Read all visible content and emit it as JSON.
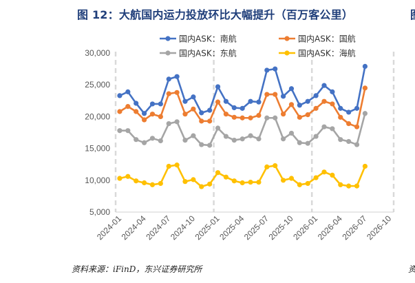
{
  "title": "图 12：大航国内运力投放环比大幅提升（百万客公里）",
  "edge_char_top": "图",
  "source": "资料来源：iFinD，东兴证券研究所",
  "edge_char_bottom": "资",
  "chart_data": {
    "type": "line",
    "ylim": [
      5000,
      30000
    ],
    "yticks": [
      "5,000",
      "10,000",
      "15,000",
      "20,000",
      "25,000",
      "30,000"
    ],
    "ytick_values": [
      5000,
      10000,
      15000,
      20000,
      25000,
      30000
    ],
    "xticks": [
      "2024-01",
      "2024-04",
      "2024-07",
      "2024-10",
      "2025-01",
      "2025-04",
      "2025-07",
      "2025-10",
      "2026-01",
      "2026-04",
      "2026-07",
      "2026-10"
    ],
    "x": [
      "2024-01",
      "2024-02",
      "2024-03",
      "2024-04",
      "2024-05",
      "2024-06",
      "2024-07",
      "2024-08",
      "2024-09",
      "2024-10",
      "2024-11",
      "2024-12",
      "2025-01",
      "2025-02",
      "2025-03",
      "2025-04",
      "2025-05",
      "2025-06",
      "2025-07",
      "2025-08",
      "2025-09",
      "2025-10",
      "2025-11",
      "2025-12",
      "2026-01",
      "2026-02",
      "2026-03",
      "2026-04",
      "2026-05",
      "2026-06",
      "2026-07"
    ],
    "grid": "vertical dashed lines at each January",
    "legend_position": "top",
    "series": [
      {
        "name": "国内ASK：南航",
        "color": "#4472c4",
        "values": [
          23300,
          23900,
          22100,
          20500,
          22000,
          22000,
          25900,
          26300,
          22400,
          23100,
          20600,
          21000,
          24700,
          22400,
          21400,
          21300,
          22400,
          22300,
          27300,
          27500,
          23200,
          24400,
          21800,
          22400,
          23300,
          24900,
          23900,
          21300,
          20700,
          21300,
          27900
        ]
      },
      {
        "name": "国内ASK：国航",
        "color": "#ed7d31",
        "values": [
          20800,
          21600,
          20800,
          19500,
          20400,
          20000,
          23600,
          23800,
          20400,
          21200,
          19300,
          19300,
          22300,
          20400,
          19900,
          19800,
          19800,
          20200,
          23500,
          23500,
          20400,
          21900,
          19900,
          20300,
          21300,
          22400,
          22000,
          19900,
          18900,
          18400,
          24500
        ]
      },
      {
        "name": "国内ASK：东航",
        "color": "#a5a5a5",
        "values": [
          17800,
          17800,
          16400,
          15900,
          16600,
          16200,
          18900,
          19200,
          16300,
          17000,
          15600,
          15500,
          18200,
          16900,
          16300,
          16500,
          17000,
          16500,
          19800,
          19800,
          16500,
          17400,
          15900,
          15800,
          16900,
          18400,
          18100,
          16400,
          16100,
          15600,
          20500
        ]
      },
      {
        "name": "国内ASK：海航",
        "color": "#ffc000",
        "values": [
          10300,
          10600,
          9900,
          9600,
          9300,
          9500,
          12200,
          12400,
          9800,
          10100,
          9000,
          9400,
          11200,
          10500,
          9900,
          9600,
          9700,
          9700,
          12100,
          12300,
          10000,
          10300,
          9300,
          9500,
          10400,
          11300,
          10800,
          9300,
          9100,
          9100,
          12200
        ]
      }
    ]
  }
}
